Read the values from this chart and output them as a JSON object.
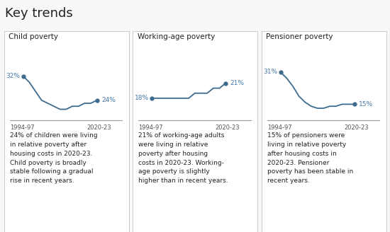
{
  "title": "Key trends",
  "title_fontsize": 13,
  "background_color": "#f8f8f8",
  "card_bg": "#ffffff",
  "card_header_bg": "#f0f0f0",
  "card_border": "#cccccc",
  "line_color": "#3d6b8e",
  "text_color": "#222222",
  "label_color": "#4477aa",
  "axis_label_color": "#555555",
  "panels": [
    {
      "title": "Child poverty",
      "start_label": "32%",
      "end_label": "24%",
      "x_start": "1994-97",
      "x_end": "2020-23",
      "y_values": [
        32,
        30,
        27,
        24,
        23,
        22,
        21,
        21,
        22,
        22,
        23,
        23,
        24
      ],
      "ylim": [
        18,
        38
      ],
      "description": "24% of children were living\nin relative poverty after\nhousing costs in 2020-23.\nChild poverty is broadly\nstable following a gradual\nrise in recent years."
    },
    {
      "title": "Working-age poverty",
      "start_label": "18%",
      "end_label": "21%",
      "x_start": "1994-97",
      "x_end": "2020-23",
      "y_values": [
        18,
        18,
        18,
        18,
        18,
        18,
        18,
        19,
        19,
        19,
        20,
        20,
        21
      ],
      "ylim": [
        14,
        26
      ],
      "description": "21% of working-age adults\nwere living in relative\npoverty after housing\ncosts in 2020-23. Working-\nage poverty is slightly\nhigher than in recent years."
    },
    {
      "title": "Pensioner poverty",
      "start_label": "31%",
      "end_label": "15%",
      "x_start": "1994-97",
      "x_end": "2020-23",
      "y_values": [
        31,
        28,
        24,
        19,
        16,
        14,
        13,
        13,
        14,
        14,
        15,
        15,
        15
      ],
      "ylim": [
        8,
        38
      ],
      "description": "15% of pensioners were\nliving in relative poverty\nafter housing costs in\n2020-23. Pensioner\npoverty has been stable in\nrecent years."
    }
  ],
  "fig_width": 5.5,
  "fig_height": 3.28,
  "dpi": 100
}
